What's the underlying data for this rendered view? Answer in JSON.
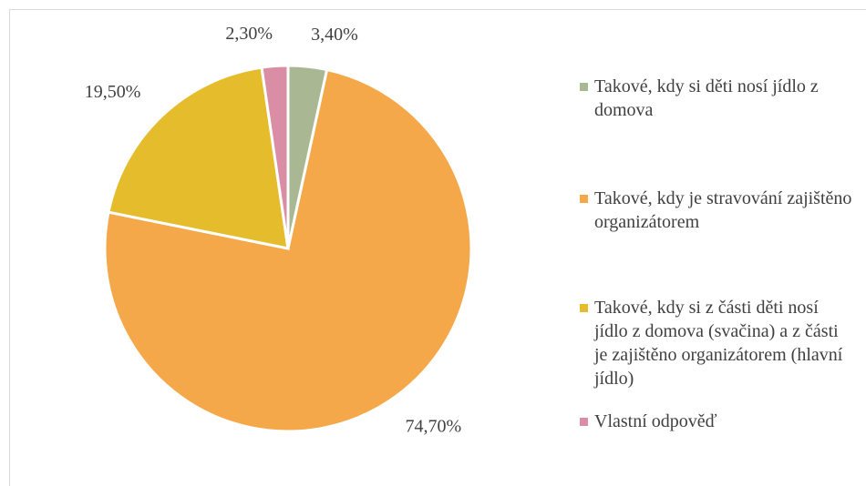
{
  "chart_data": {
    "type": "pie",
    "categories": [
      "Takové, kdy si děti nosí jídlo z domova",
      "Takové, kdy je stravování zajištěno organizátorem",
      "Takové, kdy si z části děti nosí jídlo z domova (svačina) a z části je zajištěno organizátorem (hlavní jídlo)",
      "Vlastní odpověď"
    ],
    "values": [
      3.4,
      74.7,
      19.5,
      2.3
    ],
    "value_labels": [
      "3,40%",
      "74,70%",
      "19,50%",
      "2,30%"
    ],
    "colors": [
      "#a9b893",
      "#f4a84a",
      "#e5bd2c",
      "#d98ea6"
    ],
    "legend": "right"
  }
}
